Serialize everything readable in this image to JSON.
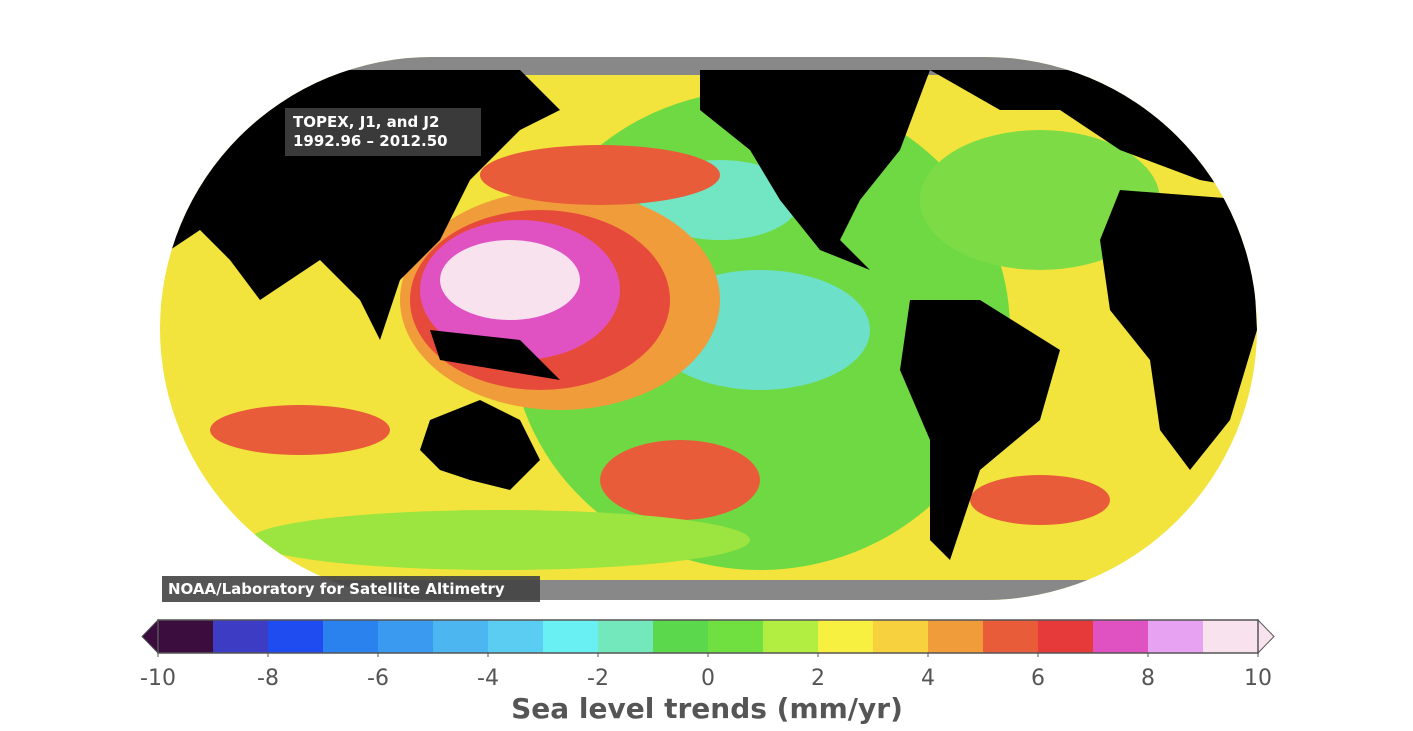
{
  "map": {
    "annotation": [
      "TOPEX, J1, and J2",
      "1992.96 – 2012.50"
    ],
    "credit": "NOAA/Laboratory for Satellite Altimetry"
  },
  "colorbar": {
    "label": "Sea level trends (mm/yr)",
    "lim": [
      -10,
      10
    ],
    "ticks": [
      -10,
      -8,
      -6,
      -4,
      -2,
      0,
      2,
      4,
      6,
      8,
      10
    ],
    "extend": "both",
    "colors": [
      "#3b0c3e",
      "#3d3cc4",
      "#1e4cf0",
      "#2a82ee",
      "#3a9af0",
      "#4cb6f0",
      "#5ccdf2",
      "#68f0f2",
      "#72e8bc",
      "#5cd84c",
      "#70e040",
      "#b2ee42",
      "#f8f040",
      "#f8d23e",
      "#f09c3a",
      "#e85c3a",
      "#e63a3a",
      "#e052c2",
      "#e8a2f2",
      "#f8e2ee"
    ]
  }
}
